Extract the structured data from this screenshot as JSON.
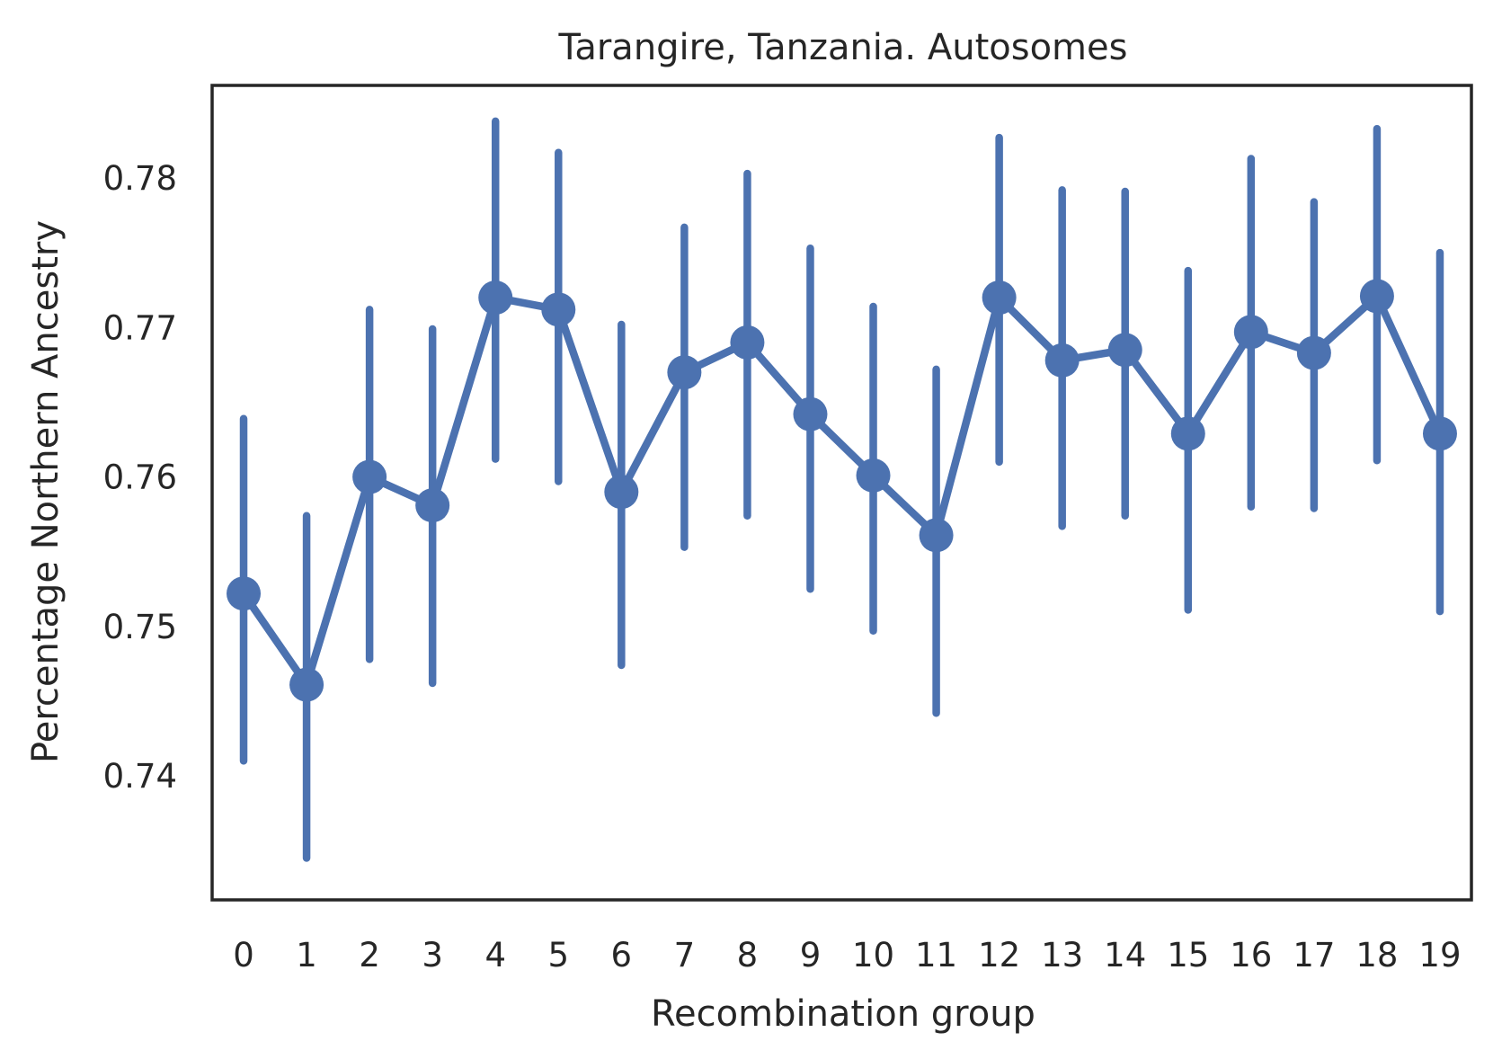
{
  "chart_data": {
    "type": "line",
    "title": "Tarangire, Tanzania. Autosomes",
    "xlabel": "Recombination group",
    "ylabel": "Percentage Northern Ancestry",
    "categories": [
      "0",
      "1",
      "2",
      "3",
      "4",
      "5",
      "6",
      "7",
      "8",
      "9",
      "10",
      "11",
      "12",
      "13",
      "14",
      "15",
      "16",
      "17",
      "18",
      "19"
    ],
    "y_ticks": [
      "0.74",
      "0.75",
      "0.76",
      "0.77",
      "0.78"
    ],
    "y_tick_values": [
      0.74,
      0.75,
      0.76,
      0.77,
      0.78
    ],
    "ylim": [
      0.7317,
      0.7862
    ],
    "series": [
      {
        "values": [
          0.7522,
          0.7461,
          0.76,
          0.7581,
          0.772,
          0.7712,
          0.759,
          0.767,
          0.769,
          0.7642,
          0.7601,
          0.7561,
          0.772,
          0.7678,
          0.7685,
          0.7629,
          0.7697,
          0.7683,
          0.7721,
          0.7629
        ],
        "ci_low": [
          0.741,
          0.7345,
          0.7478,
          0.7462,
          0.7612,
          0.7597,
          0.7474,
          0.7553,
          0.7574,
          0.7525,
          0.7497,
          0.7442,
          0.761,
          0.7567,
          0.7574,
          0.7511,
          0.758,
          0.7579,
          0.7611,
          0.751
        ],
        "ci_high": [
          0.7639,
          0.7574,
          0.7712,
          0.7699,
          0.7838,
          0.7817,
          0.7702,
          0.7767,
          0.7803,
          0.7753,
          0.7714,
          0.7672,
          0.7827,
          0.7792,
          0.7791,
          0.7738,
          0.7813,
          0.7784,
          0.7833,
          0.775
        ]
      }
    ],
    "grid": false,
    "color": "#4c72b0",
    "frame_color": "#262626"
  }
}
